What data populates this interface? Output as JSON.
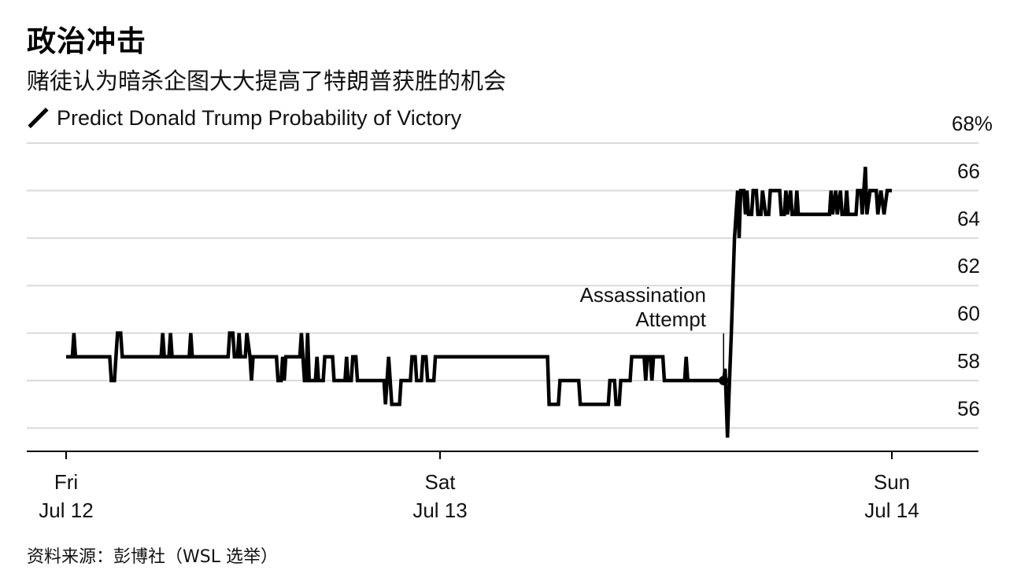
{
  "header": {
    "title": "政治冲击",
    "subtitle": "赌徒认为暗杀企图大大提高了特朗普获胜的机会"
  },
  "legend": {
    "label": "Predict Donald Trump Probability of Victory"
  },
  "source": "资料来源：彭博社（WSL 选举）",
  "colors": {
    "line": "#000000",
    "grid": "#d9d9d9",
    "axis": "#000000"
  },
  "chart_data": {
    "type": "line",
    "title": "政治冲击",
    "subtitle": "赌徒认为暗杀企图大大提高了特朗普获胜的机会",
    "xlabel": "",
    "ylabel": "",
    "x_unit": "hours since Fri Jul 12 00:00",
    "xlim": [
      0,
      57
    ],
    "ylim": [
      55.5,
      68.5
    ],
    "y_ticks": [
      56,
      58,
      60,
      62,
      64,
      66,
      68
    ],
    "y_tick_labels": [
      "56",
      "58",
      "60",
      "62",
      "64",
      "66",
      "68%"
    ],
    "x_ticks": [
      {
        "x": 0,
        "label_top": "Fri",
        "label_bottom": "Jul 12"
      },
      {
        "x": 24,
        "label_top": "Sat",
        "label_bottom": "Jul 13"
      },
      {
        "x": 53,
        "label_top": "Sun",
        "label_bottom": "Jul 14"
      }
    ],
    "grid": true,
    "annotation": {
      "label_line1": "Assassination",
      "label_line2": "Attempt",
      "x": 42.2,
      "y": 58
    },
    "series": [
      {
        "name": "Predict Donald Trump Probability of Victory",
        "points": [
          [
            0.0,
            59
          ],
          [
            0.4,
            59
          ],
          [
            0.5,
            60
          ],
          [
            0.6,
            59
          ],
          [
            2.8,
            59
          ],
          [
            2.9,
            58
          ],
          [
            3.1,
            58
          ],
          [
            3.2,
            59
          ],
          [
            3.3,
            60
          ],
          [
            3.5,
            60
          ],
          [
            3.6,
            59
          ],
          [
            6.1,
            59
          ],
          [
            6.2,
            60
          ],
          [
            6.3,
            59
          ],
          [
            6.6,
            59
          ],
          [
            6.7,
            60
          ],
          [
            6.8,
            59
          ],
          [
            7.9,
            59
          ],
          [
            8.0,
            60
          ],
          [
            8.1,
            59
          ],
          [
            10.4,
            59
          ],
          [
            10.5,
            60
          ],
          [
            10.7,
            60
          ],
          [
            10.8,
            59
          ],
          [
            11.0,
            59
          ],
          [
            11.1,
            60
          ],
          [
            11.2,
            59
          ],
          [
            11.5,
            59
          ],
          [
            11.6,
            60
          ],
          [
            11.8,
            59
          ],
          [
            11.9,
            58
          ],
          [
            12.0,
            59
          ],
          [
            13.5,
            59
          ],
          [
            13.6,
            58
          ],
          [
            13.8,
            58
          ],
          [
            13.9,
            59
          ],
          [
            14.0,
            58
          ],
          [
            14.1,
            59
          ],
          [
            15.0,
            59
          ],
          [
            15.1,
            60
          ],
          [
            15.2,
            59
          ],
          [
            15.3,
            58
          ],
          [
            15.4,
            58
          ],
          [
            15.5,
            60
          ],
          [
            15.6,
            58
          ],
          [
            16.0,
            58
          ],
          [
            16.1,
            59
          ],
          [
            16.2,
            58
          ],
          [
            16.5,
            58
          ],
          [
            16.6,
            59
          ],
          [
            17.1,
            59
          ],
          [
            17.2,
            58
          ],
          [
            17.9,
            58
          ],
          [
            18.0,
            59
          ],
          [
            18.1,
            58
          ],
          [
            18.3,
            58
          ],
          [
            18.4,
            59
          ],
          [
            18.6,
            59
          ],
          [
            18.7,
            58
          ],
          [
            20.4,
            58
          ],
          [
            20.5,
            57
          ],
          [
            20.6,
            58
          ],
          [
            20.7,
            59
          ],
          [
            20.8,
            58
          ],
          [
            20.9,
            57
          ],
          [
            21.4,
            57
          ],
          [
            21.5,
            58
          ],
          [
            22.1,
            58
          ],
          [
            22.2,
            59
          ],
          [
            22.4,
            59
          ],
          [
            22.5,
            58
          ],
          [
            22.8,
            58
          ],
          [
            22.9,
            59
          ],
          [
            23.1,
            59
          ],
          [
            23.2,
            58
          ],
          [
            23.6,
            58
          ],
          [
            23.7,
            59
          ],
          [
            30.9,
            59
          ],
          [
            31.0,
            57
          ],
          [
            31.6,
            57
          ],
          [
            31.7,
            58
          ],
          [
            32.9,
            58
          ],
          [
            33.0,
            57
          ],
          [
            34.8,
            57
          ],
          [
            34.9,
            58
          ],
          [
            35.2,
            58
          ],
          [
            35.3,
            57
          ],
          [
            35.5,
            57
          ],
          [
            35.6,
            58
          ],
          [
            36.2,
            58
          ],
          [
            36.3,
            59
          ],
          [
            37.1,
            59
          ],
          [
            37.2,
            58
          ],
          [
            37.3,
            59
          ],
          [
            37.5,
            59
          ],
          [
            37.6,
            58
          ],
          [
            37.7,
            59
          ],
          [
            38.3,
            59
          ],
          [
            38.4,
            58
          ],
          [
            39.7,
            58
          ],
          [
            39.8,
            59
          ],
          [
            39.9,
            58
          ],
          [
            42.2,
            58
          ],
          [
            42.3,
            58.5
          ],
          [
            42.45,
            55.6
          ],
          [
            42.55,
            57.5
          ],
          [
            42.7,
            60
          ],
          [
            42.9,
            64
          ],
          [
            43.1,
            66
          ],
          [
            43.2,
            64
          ],
          [
            43.3,
            66
          ],
          [
            43.5,
            66
          ],
          [
            43.6,
            65
          ],
          [
            43.7,
            66
          ],
          [
            43.8,
            65
          ],
          [
            44.0,
            65
          ],
          [
            44.1,
            66
          ],
          [
            44.3,
            66
          ],
          [
            44.4,
            65
          ],
          [
            44.6,
            65
          ],
          [
            44.7,
            66
          ],
          [
            44.9,
            65
          ],
          [
            45.1,
            65
          ],
          [
            45.2,
            66
          ],
          [
            45.8,
            66
          ],
          [
            45.9,
            65
          ],
          [
            46.1,
            65
          ],
          [
            46.2,
            66
          ],
          [
            46.3,
            65
          ],
          [
            46.5,
            66
          ],
          [
            46.6,
            65
          ],
          [
            46.8,
            65
          ],
          [
            46.9,
            66
          ],
          [
            47.0,
            65
          ],
          [
            49.0,
            65
          ],
          [
            49.1,
            66
          ],
          [
            49.2,
            65
          ],
          [
            49.4,
            66
          ],
          [
            49.5,
            65
          ],
          [
            49.7,
            66
          ],
          [
            49.8,
            65
          ],
          [
            50.0,
            65
          ],
          [
            50.1,
            66
          ],
          [
            50.2,
            65
          ],
          [
            50.7,
            65
          ],
          [
            50.8,
            66
          ],
          [
            51.0,
            66
          ],
          [
            51.1,
            65
          ],
          [
            51.2,
            66
          ],
          [
            51.3,
            67
          ],
          [
            51.4,
            65
          ],
          [
            51.6,
            66
          ],
          [
            52.0,
            66
          ],
          [
            52.1,
            65
          ],
          [
            52.3,
            66
          ],
          [
            52.5,
            65
          ],
          [
            52.7,
            66
          ],
          [
            53.0,
            66
          ]
        ]
      }
    ]
  }
}
